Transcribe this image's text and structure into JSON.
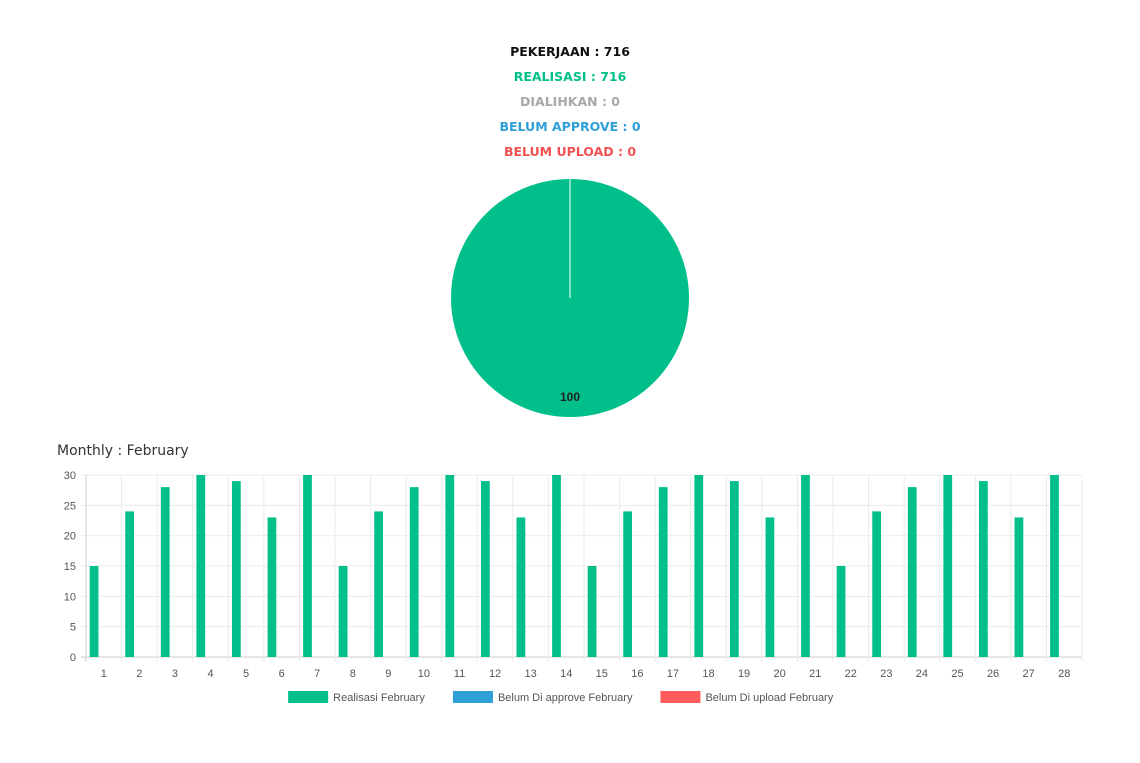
{
  "summary": {
    "pekerjaan": "PEKERJAAN : 716",
    "realisasi": "REALISASI : 716",
    "dialihkan": "DIALIHKAN : 0",
    "belum_approve": "BELUM APPROVE : 0",
    "belum_upload": "BELUM UPLOAD : 0"
  },
  "colors": {
    "pekerjaan": "#111111",
    "realisasi": "#00bf8a",
    "dialihkan": "#a8a8a8",
    "belum_approve": "#2f9fd8",
    "belum_upload": "#f05252"
  },
  "monthly_title": "Monthly : February",
  "chart_data": [
    {
      "type": "pie",
      "slices": [
        {
          "name": "Realisasi",
          "value": 100,
          "label": "100",
          "color": "#00bf8a"
        }
      ]
    },
    {
      "type": "bar",
      "title": "Monthly : February",
      "categories": [
        "1",
        "2",
        "3",
        "4",
        "5",
        "6",
        "7",
        "8",
        "9",
        "10",
        "11",
        "12",
        "13",
        "14",
        "15",
        "16",
        "17",
        "18",
        "19",
        "20",
        "21",
        "22",
        "23",
        "24",
        "25",
        "26",
        "27",
        "28"
      ],
      "ylim": [
        0,
        30
      ],
      "yticks": [
        0,
        5,
        10,
        15,
        20,
        25,
        30
      ],
      "grid": true,
      "legend_position": "bottom",
      "series": [
        {
          "name": "Realisasi February",
          "color": "#00bf8a",
          "values": [
            15,
            24,
            28,
            30,
            29,
            23,
            30,
            15,
            24,
            28,
            30,
            29,
            23,
            30,
            15,
            24,
            28,
            30,
            29,
            23,
            30,
            15,
            24,
            28,
            30,
            29,
            23,
            30
          ]
        },
        {
          "name": "Belum Di approve February",
          "color": "#2f9fd8",
          "values": [
            0,
            0,
            0,
            0,
            0,
            0,
            0,
            0,
            0,
            0,
            0,
            0,
            0,
            0,
            0,
            0,
            0,
            0,
            0,
            0,
            0,
            0,
            0,
            0,
            0,
            0,
            0,
            0
          ]
        },
        {
          "name": "Belum Di upload February",
          "color": "#ff5b5b",
          "values": [
            0,
            0,
            0,
            0,
            0,
            0,
            0,
            0,
            0,
            0,
            0,
            0,
            0,
            0,
            0,
            0,
            0,
            0,
            0,
            0,
            0,
            0,
            0,
            0,
            0,
            0,
            0,
            0
          ]
        }
      ]
    }
  ]
}
